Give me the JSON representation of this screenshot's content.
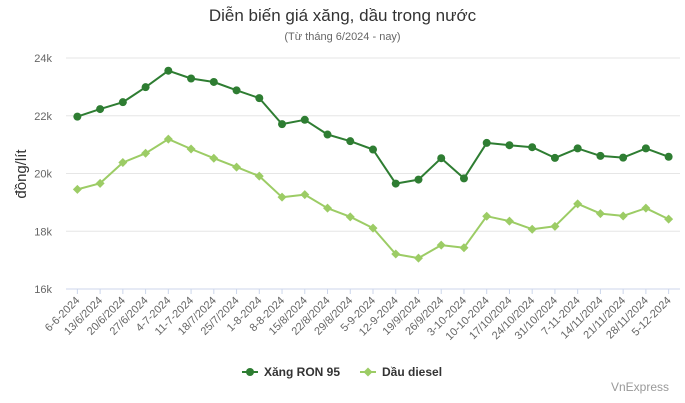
{
  "chart_data": {
    "type": "line",
    "title": "Diễn biến giá xăng, dầu trong nước",
    "subtitle": "(Từ tháng 6/2024 - nay)",
    "ylabel": "đồng/lít",
    "xlabel": "",
    "ylim": [
      16000,
      24000
    ],
    "yticks": [
      16000,
      18000,
      20000,
      22000,
      24000
    ],
    "ytick_labels": [
      "16k",
      "18k",
      "20k",
      "22k",
      "24k"
    ],
    "grid": true,
    "legend": "bottom",
    "categories": [
      "6-6-2024",
      "13/6/2024",
      "20/6/2024",
      "27/6/2024",
      "4-7-2024",
      "11-7-2024",
      "18/7/2024",
      "25/7/2024",
      "1-8-2024",
      "8-8-2024",
      "15/8/2024",
      "22/8/2024",
      "29/8/2024",
      "5-9-2024",
      "12-9-2024",
      "19/9/2024",
      "26/9/2024",
      "3-10-2024",
      "10-10-2024",
      "17/10/2024",
      "24/10/2024",
      "31/10/2024",
      "7-11-2024",
      "14/11/2024",
      "21/11/2024",
      "28/11/2024",
      "5-12-2024"
    ],
    "series": [
      {
        "name": "Xăng RON 95",
        "color": "#2e7d32",
        "values": [
          21970,
          22230,
          22470,
          22990,
          23560,
          23290,
          23170,
          22880,
          22610,
          21710,
          21860,
          21350,
          21120,
          20830,
          19650,
          19790,
          20530,
          19830,
          21060,
          20980,
          20910,
          20540,
          20870,
          20610,
          20550,
          20870,
          20580
        ]
      },
      {
        "name": "Dầu diesel",
        "color": "#9ccc65",
        "values": [
          19450,
          19660,
          20380,
          20700,
          21190,
          20850,
          20530,
          20220,
          19910,
          19180,
          19270,
          18800,
          18500,
          18110,
          17210,
          17070,
          17520,
          17430,
          18520,
          18350,
          18070,
          18170,
          18950,
          18610,
          18530,
          18800,
          18420
        ]
      }
    ]
  },
  "credit": "VnExpress"
}
